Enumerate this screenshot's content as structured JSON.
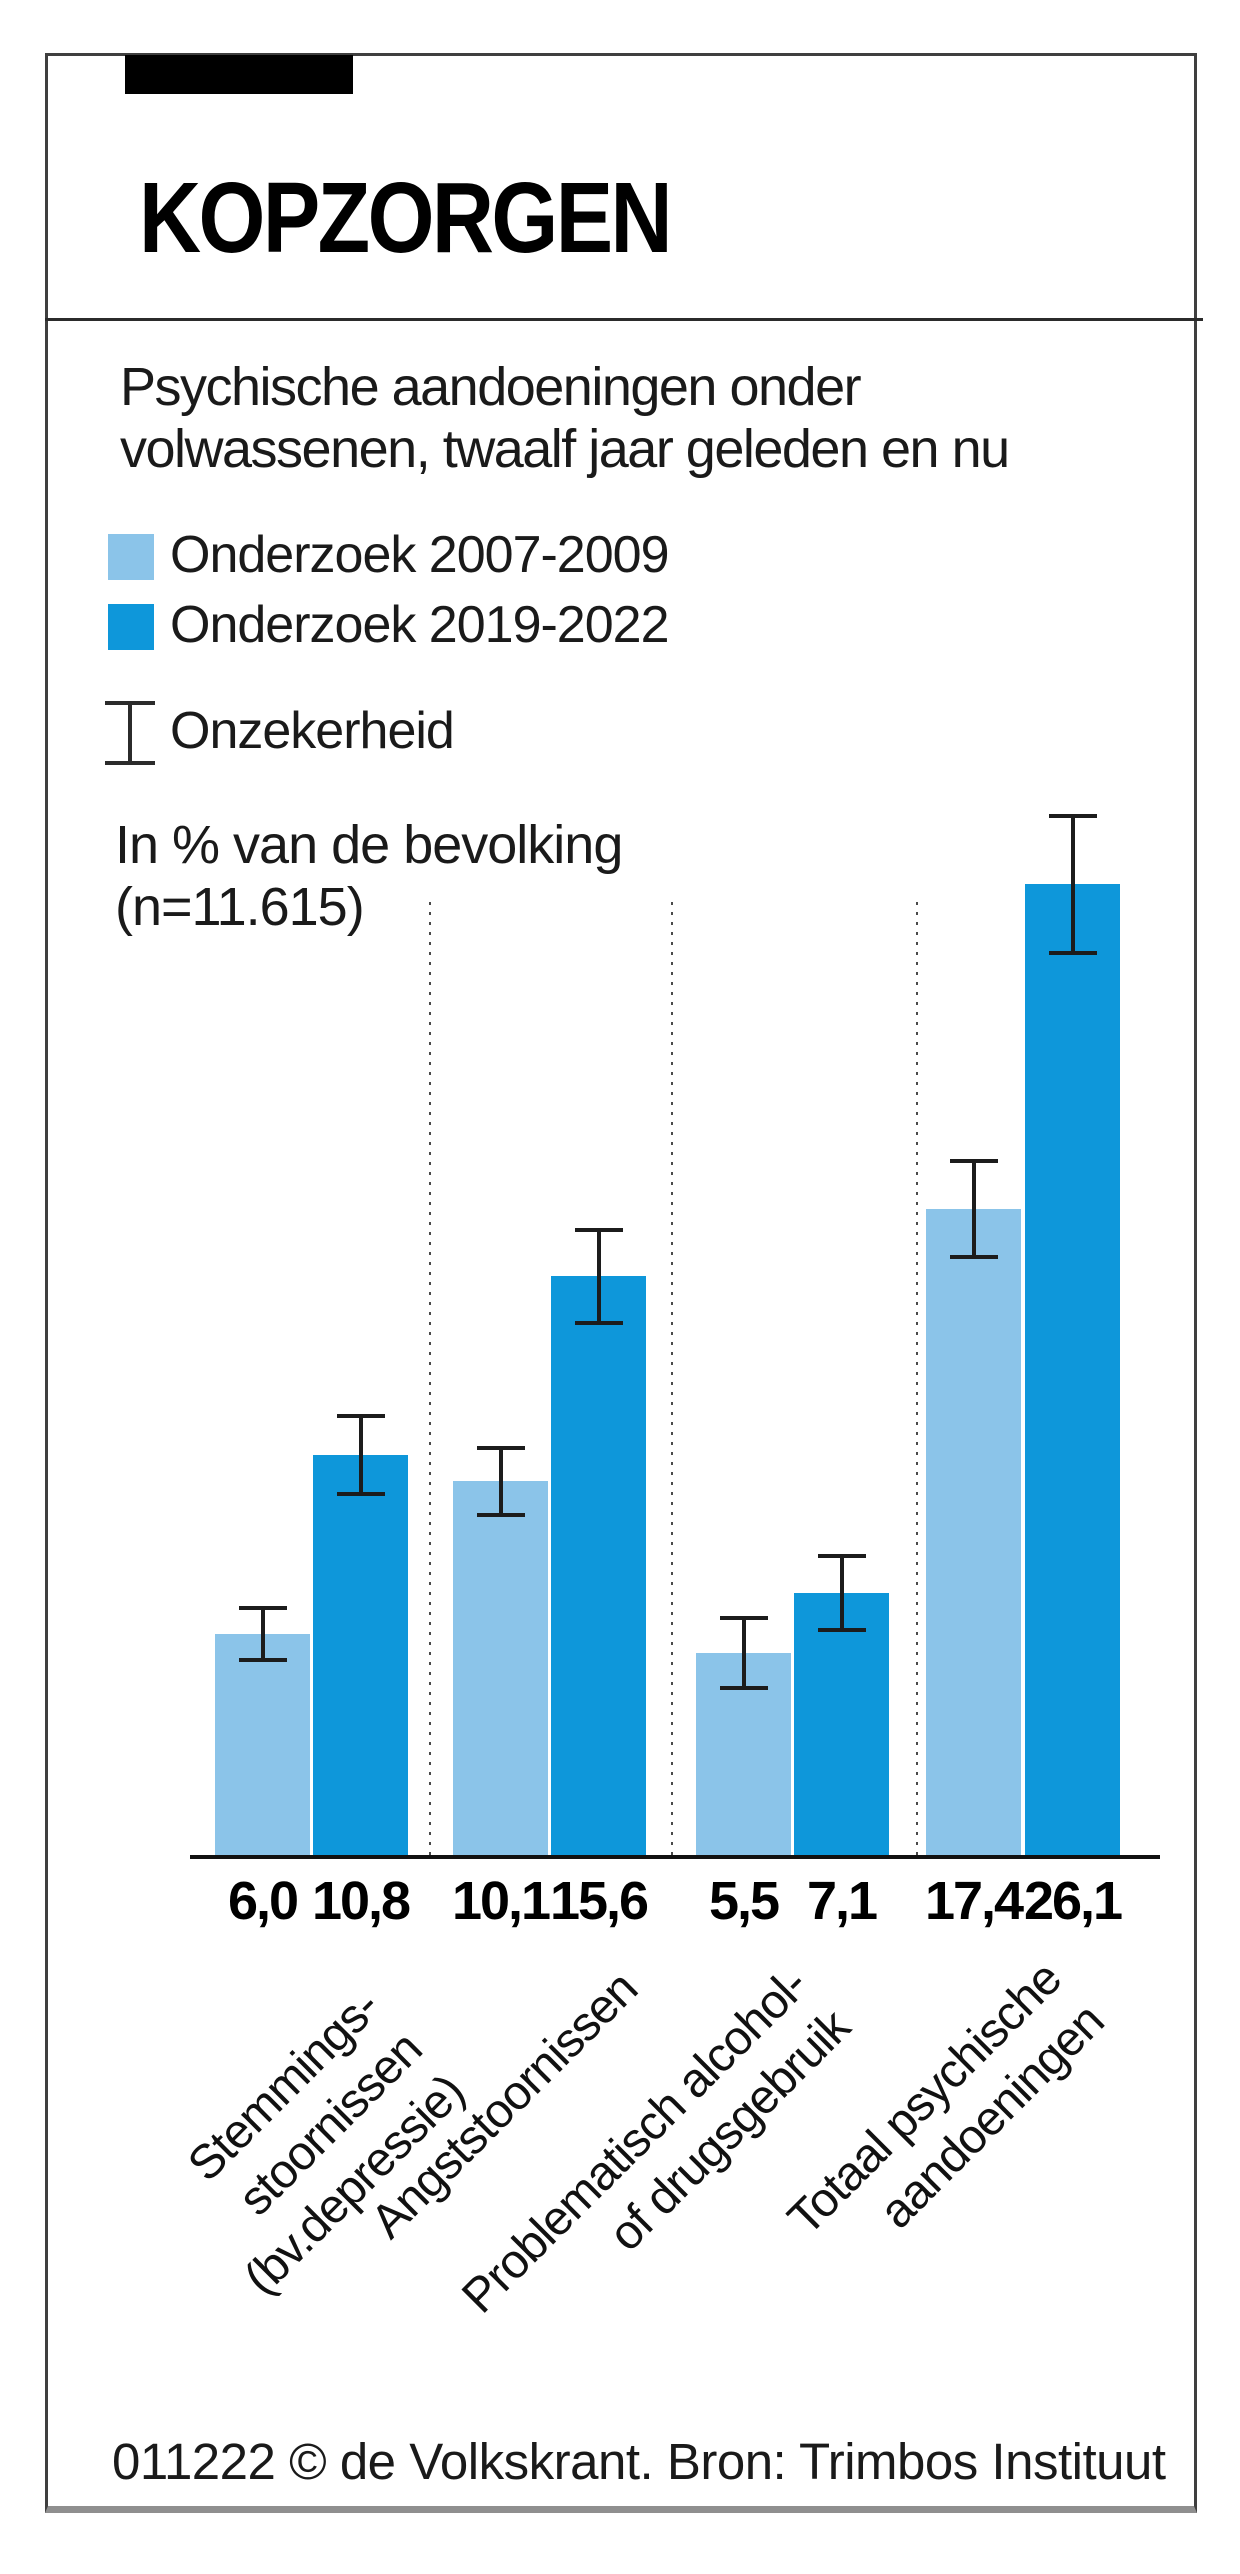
{
  "header": {
    "title": "KOPZORGEN"
  },
  "chart": {
    "subtitle": "Psychische aandoeningen onder\nvolwassenen, twaalf jaar geleden en nu",
    "legend": [
      {
        "label": "Onderzoek 2007-2009",
        "color": "#8BC4E9"
      },
      {
        "label": "Onderzoek 2019-2022",
        "color": "#0E97DA"
      }
    ],
    "uncertainty_label": "Onzekerheid",
    "unit_note": "In % van de bevolking\n(n=11.615)"
  },
  "chart_data": {
    "type": "bar",
    "title": "Psychische aandoeningen onder volwassenen, twaalf jaar geleden en nu",
    "unit": "% van de bevolking",
    "sample_size": "n=11.615",
    "categories": [
      "Stemmings-\nstoornissen\n(bv.depressie)",
      "Angststoornissen",
      "Problematisch alcohol-\nof drugsgebruik",
      "Totaal psychische\naandoeningen"
    ],
    "series": [
      {
        "name": "Onderzoek 2007-2009",
        "color": "#8BC4E9",
        "values": [
          6.0,
          10.1,
          5.5,
          17.4
        ],
        "errors": [
          0.75,
          0.95,
          1.0,
          1.35
        ]
      },
      {
        "name": "Onderzoek 2019-2022",
        "color": "#0E97DA",
        "values": [
          10.8,
          15.6,
          7.1,
          26.1
        ],
        "errors": [
          1.1,
          1.3,
          1.05,
          1.9
        ]
      }
    ],
    "value_labels": [
      [
        "6,0",
        "10,1",
        "5,5",
        "17,4"
      ],
      [
        "10,8",
        "15,6",
        "7,1",
        "26,1"
      ]
    ],
    "error_legend": "Onzekerheid",
    "ylim": [
      0,
      28
    ],
    "grid": "dotted vertical category separators",
    "legend_position": "top-left"
  },
  "footer": {
    "credit": "011222 © de Volkskrant. Bron: Trimbos Instituut"
  }
}
